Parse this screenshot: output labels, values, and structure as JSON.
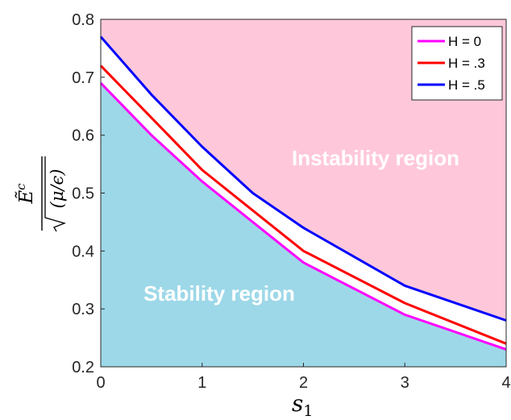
{
  "chart_data": {
    "type": "line",
    "x": [
      0,
      0.5,
      1,
      1.5,
      2,
      3,
      4
    ],
    "series": [
      {
        "name": "H = 0",
        "color": "#ff00ff",
        "values": [
          0.69,
          0.6,
          0.52,
          0.45,
          0.38,
          0.29,
          0.23
        ]
      },
      {
        "name": "H = .3",
        "color": "#ff0000",
        "values": [
          0.72,
          0.63,
          0.54,
          0.47,
          0.4,
          0.31,
          0.24
        ]
      },
      {
        "name": "H = .5",
        "color": "#0000ff",
        "values": [
          0.77,
          0.67,
          0.58,
          0.5,
          0.44,
          0.34,
          0.28
        ]
      }
    ],
    "xlim": [
      0,
      4
    ],
    "ylim": [
      0.2,
      0.8
    ],
    "xticks": [
      "0",
      "1",
      "2",
      "3",
      "4"
    ],
    "yticks": [
      "0.2",
      "0.3",
      "0.4",
      "0.5",
      "0.6",
      "0.7",
      "0.8"
    ],
    "xlabel": "s1",
    "ylabel": "Ẽc / √(μ/ε)",
    "legend_position": "top-right",
    "grid": false,
    "annotations": {
      "upper_region": "Instability region",
      "lower_region": "Stability region"
    },
    "colors": {
      "stability_fill": "#9dd8e8",
      "instability_fill": "#ffc8da",
      "axes": "#262626"
    }
  }
}
